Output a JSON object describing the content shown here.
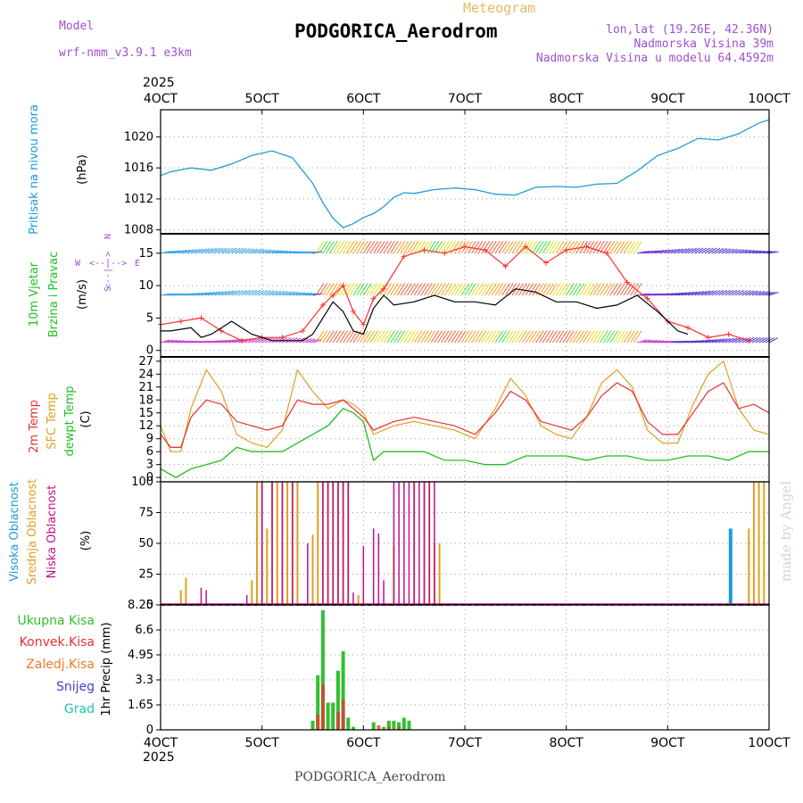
{
  "header": {
    "model_label": "Model",
    "model_name": "wrf-nmm_v3.9.1 e3km",
    "meteogram": "Meteogram",
    "title": "PODGORICA_Aerodrom",
    "lonlat": "lon,lat (19.26E, 42.36N)",
    "elev": "Nadmorska Visina 39m",
    "elev_model": "Nadmorska Visina u modelu 64.4592m",
    "footer": "PODGORICA_Aerodrom",
    "watermark": "made by Angel",
    "year": "2025"
  },
  "colors": {
    "pressure": "#1e9bd8",
    "wind_speed": "#000000",
    "gust": "#ff3030",
    "t2m": "#e83030",
    "sfc": "#e0a020",
    "dewpt": "#20c020",
    "high_cloud": "#1e9bd8",
    "mid_cloud": "#e0a020",
    "low_cloud": "#c0108c",
    "total_precip": "#30c030",
    "conv_precip": "#e83030"
  },
  "chart_data": [
    {
      "type": "line",
      "panel": "pressure",
      "labels": [
        "Pritisak na nivou mora",
        "(hPa)"
      ],
      "x_ticks": [
        "4OCT",
        "5OCT",
        "6OCT",
        "7OCT",
        "8OCT",
        "9OCT",
        "10OCT"
      ],
      "xlim": [
        4,
        10
      ],
      "ylim": [
        1007.5,
        1023.5
      ],
      "y_ticks": [
        1008,
        1012,
        1016,
        1020
      ],
      "series": [
        {
          "name": "Pritisak",
          "x": [
            4.0,
            4.1,
            4.3,
            4.5,
            4.7,
            4.9,
            5.1,
            5.3,
            5.5,
            5.6,
            5.7,
            5.8,
            5.9,
            6.0,
            6.1,
            6.2,
            6.3,
            6.4,
            6.5,
            6.7,
            6.9,
            7.1,
            7.3,
            7.5,
            7.7,
            7.9,
            8.1,
            8.3,
            8.5,
            8.7,
            8.9,
            9.1,
            9.3,
            9.5,
            9.7,
            9.9,
            10.0
          ],
          "y": [
            1015.0,
            1015.5,
            1016.0,
            1015.7,
            1016.5,
            1017.6,
            1018.2,
            1017.3,
            1014.0,
            1011.5,
            1009.5,
            1008.3,
            1008.8,
            1009.6,
            1010.1,
            1011.0,
            1012.2,
            1012.8,
            1012.7,
            1013.2,
            1013.4,
            1013.2,
            1012.6,
            1012.5,
            1013.5,
            1013.6,
            1013.5,
            1013.9,
            1014.0,
            1015.6,
            1017.6,
            1018.5,
            1019.8,
            1019.6,
            1020.4,
            1021.8,
            1022.2
          ]
        }
      ]
    },
    {
      "type": "line",
      "panel": "wind",
      "labels": [
        "10m Vjetar",
        "Brzina i Pravac",
        "(m/s)"
      ],
      "direction_legend": [
        "N",
        "W",
        "E",
        "S"
      ],
      "ylim": [
        -1,
        18
      ],
      "y_ticks": [
        0,
        5,
        10,
        15
      ],
      "series": [
        {
          "name": "Brzina",
          "x": [
            4.0,
            4.1,
            4.3,
            4.4,
            4.5,
            4.7,
            4.9,
            5.1,
            5.3,
            5.4,
            5.5,
            5.6,
            5.7,
            5.8,
            5.9,
            6.0,
            6.1,
            6.2,
            6.3,
            6.5,
            6.7,
            6.9,
            7.1,
            7.3,
            7.5,
            7.7,
            7.9,
            8.1,
            8.3,
            8.5,
            8.7,
            8.9,
            9.1,
            9.2
          ],
          "y": [
            3.0,
            3.0,
            3.5,
            2.0,
            2.5,
            4.5,
            2.5,
            1.5,
            1.5,
            1.5,
            2.5,
            5.0,
            7.5,
            6.0,
            3.0,
            2.5,
            6.5,
            8.5,
            7.0,
            7.5,
            8.5,
            7.5,
            7.5,
            7.0,
            9.5,
            9.0,
            7.5,
            7.5,
            6.5,
            7.0,
            8.5,
            6.0,
            3.0,
            2.5
          ]
        },
        {
          "name": "Udari",
          "x": [
            4.0,
            4.2,
            4.4,
            4.6,
            4.8,
            5.0,
            5.2,
            5.4,
            5.6,
            5.7,
            5.8,
            5.9,
            6.0,
            6.1,
            6.2,
            6.4,
            6.6,
            6.8,
            7.0,
            7.2,
            7.4,
            7.6,
            7.8,
            8.0,
            8.2,
            8.4,
            8.6,
            8.8,
            9.0,
            9.2,
            9.4,
            9.6,
            9.8
          ],
          "y": [
            4.0,
            4.5,
            5.0,
            3.0,
            1.5,
            2.0,
            2.0,
            3.0,
            7.0,
            8.5,
            10.0,
            6.0,
            4.0,
            8.0,
            9.5,
            14.5,
            15.5,
            15.0,
            16.0,
            15.5,
            13.0,
            16.0,
            13.5,
            15.5,
            16.0,
            15.0,
            10.5,
            8.0,
            4.5,
            3.5,
            2.0,
            2.5,
            1.5
          ]
        }
      ]
    },
    {
      "type": "line",
      "panel": "temperature",
      "labels": [
        "2m Temp",
        "SFC Temp",
        "dewpt Temp",
        "(C)"
      ],
      "ylim": [
        -1,
        28
      ],
      "y_ticks": [
        0,
        3,
        6,
        9,
        12,
        15,
        18,
        21,
        24,
        27
      ],
      "series": [
        {
          "name": "2m Temp",
          "x": [
            4.0,
            4.1,
            4.2,
            4.3,
            4.45,
            4.6,
            4.75,
            4.9,
            5.05,
            5.2,
            5.35,
            5.5,
            5.65,
            5.8,
            5.9,
            6.0,
            6.1,
            6.3,
            6.5,
            6.7,
            6.9,
            7.1,
            7.3,
            7.45,
            7.6,
            7.75,
            7.9,
            8.05,
            8.2,
            8.35,
            8.5,
            8.65,
            8.8,
            8.95,
            9.1,
            9.25,
            9.4,
            9.55,
            9.7,
            9.85,
            10.0
          ],
          "y": [
            10,
            7,
            7,
            14,
            18,
            17,
            13,
            12,
            11,
            12,
            18,
            17,
            17,
            18,
            16,
            14,
            11,
            13,
            14,
            13,
            12,
            10,
            15,
            20,
            18,
            13,
            12,
            11,
            14,
            19,
            22,
            20,
            13,
            10,
            10,
            15,
            20,
            22,
            16,
            17,
            15
          ]
        },
        {
          "name": "SFC Temp",
          "x": [
            4.0,
            4.1,
            4.2,
            4.3,
            4.45,
            4.6,
            4.75,
            4.9,
            5.05,
            5.2,
            5.35,
            5.5,
            5.65,
            5.8,
            5.9,
            6.0,
            6.1,
            6.3,
            6.5,
            6.7,
            6.9,
            7.1,
            7.3,
            7.45,
            7.6,
            7.75,
            7.9,
            8.05,
            8.2,
            8.35,
            8.5,
            8.65,
            8.8,
            8.95,
            9.1,
            9.25,
            9.4,
            9.55,
            9.7,
            9.85,
            10.0
          ],
          "y": [
            12,
            6,
            6,
            16,
            25,
            20,
            10,
            8,
            7,
            11,
            25,
            20,
            16,
            18,
            17,
            15,
            10,
            12,
            13,
            12,
            11,
            9,
            16,
            23,
            19,
            12,
            10,
            9,
            14,
            22,
            25,
            21,
            11,
            8,
            8,
            17,
            24,
            27,
            16,
            11,
            10
          ]
        },
        {
          "name": "dewpt Temp",
          "x": [
            4.0,
            4.15,
            4.3,
            4.45,
            4.6,
            4.75,
            4.9,
            5.05,
            5.2,
            5.35,
            5.5,
            5.65,
            5.8,
            5.9,
            6.0,
            6.1,
            6.2,
            6.4,
            6.6,
            6.8,
            7.0,
            7.2,
            7.4,
            7.6,
            7.8,
            8.0,
            8.2,
            8.4,
            8.6,
            8.8,
            9.0,
            9.2,
            9.4,
            9.6,
            9.8,
            10.0
          ],
          "y": [
            2,
            0,
            2,
            3,
            4,
            7,
            6,
            6,
            6,
            8,
            10,
            12,
            16,
            15,
            13,
            4,
            6,
            6,
            6,
            4,
            4,
            3,
            3,
            5,
            5,
            5,
            4,
            5,
            5,
            4,
            4,
            5,
            5,
            4,
            6,
            6
          ]
        }
      ]
    },
    {
      "type": "bar",
      "panel": "clouds",
      "labels": [
        "Visoka Oblacnost",
        "Srednja Oblacnost",
        "Niska Oblacnost",
        "(%)"
      ],
      "ylim": [
        0,
        100
      ],
      "y_ticks": [
        0,
        25,
        50,
        75,
        100
      ],
      "series": [
        {
          "name": "Visoka Oblacnost",
          "x": [
            9.62
          ],
          "values": [
            62
          ]
        },
        {
          "name": "Srednja Oblacnost",
          "x": [
            4.2,
            4.25,
            4.9,
            4.95,
            5.0,
            5.05,
            5.1,
            5.15,
            5.2,
            5.25,
            5.3,
            5.35,
            5.5,
            5.55,
            5.6,
            5.65,
            5.7,
            5.75,
            5.8,
            5.85,
            5.95,
            6.3,
            6.5,
            6.6,
            6.65,
            6.7,
            6.75,
            9.8,
            9.85,
            9.9,
            9.95
          ],
          "values": [
            12,
            22,
            20,
            100,
            100,
            62,
            100,
            100,
            100,
            100,
            100,
            100,
            57,
            100,
            100,
            100,
            100,
            100,
            100,
            100,
            8,
            48,
            100,
            100,
            100,
            50,
            50,
            62,
            100,
            100,
            100
          ]
        },
        {
          "name": "Niska Oblacnost",
          "x": [
            4.4,
            4.45,
            4.85,
            5.0,
            5.1,
            5.2,
            5.3,
            5.45,
            5.6,
            5.65,
            5.7,
            5.75,
            5.8,
            5.85,
            5.9,
            6.0,
            6.1,
            6.15,
            6.2,
            6.3,
            6.35,
            6.4,
            6.45,
            6.5,
            6.55,
            6.6,
            6.65,
            6.7
          ],
          "values": [
            14,
            12,
            8,
            100,
            100,
            100,
            100,
            50,
            100,
            100,
            100,
            100,
            100,
            100,
            10,
            48,
            62,
            58,
            20,
            100,
            100,
            100,
            100,
            100,
            100,
            100,
            100,
            100
          ]
        }
      ]
    },
    {
      "type": "bar",
      "panel": "precipitation",
      "labels": [
        "Ukupna Kisa",
        "Konvek.Kisa",
        "Zaledj.Kisa",
        "Snijeg",
        "Grad",
        "1hr Precip (mm)"
      ],
      "ylim": [
        0,
        8.25
      ],
      "y_ticks": [
        0,
        1.65,
        3.3,
        4.95,
        6.6,
        8.25
      ],
      "series": [
        {
          "name": "Ukupna Kisa",
          "x": [
            5.5,
            5.55,
            5.6,
            5.65,
            5.7,
            5.75,
            5.8,
            5.85,
            5.9,
            6.1,
            6.2,
            6.25,
            6.3,
            6.35,
            6.4,
            6.45
          ],
          "values": [
            0.6,
            3.6,
            7.9,
            1.8,
            1.8,
            3.9,
            5.2,
            0.8,
            0.2,
            0.5,
            0.2,
            0.6,
            0.6,
            0.5,
            0.8,
            0.6
          ]
        },
        {
          "name": "Konvek.Kisa",
          "x": [
            5.55,
            5.6,
            5.75,
            5.8,
            6.15,
            6.25,
            6.35
          ],
          "values": [
            1.0,
            3.0,
            1.2,
            2.0,
            0.3,
            0.2,
            0.2
          ]
        }
      ]
    }
  ]
}
